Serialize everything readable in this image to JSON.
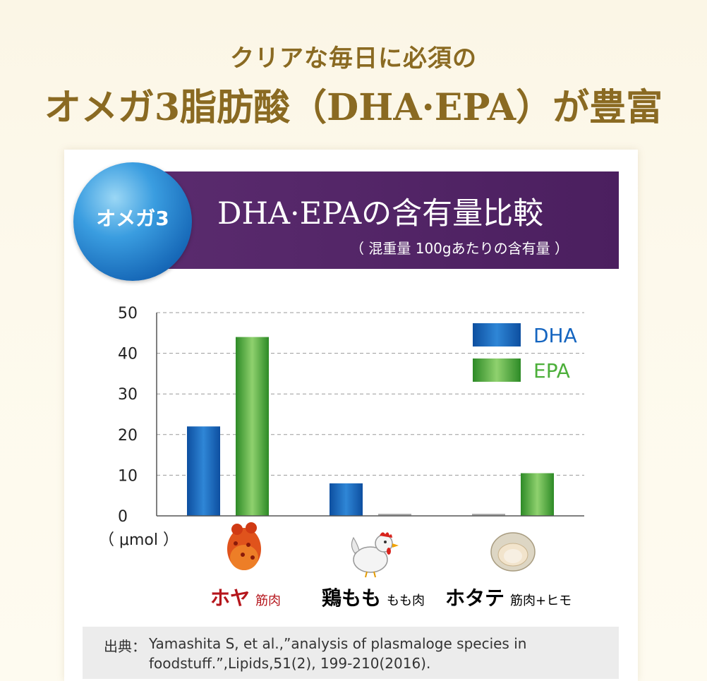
{
  "headline": {
    "sub": "クリアな毎日に必須の",
    "main": "オメガ3脂肪酸（DHA·EPA）が豊富"
  },
  "badge": {
    "label": "オメガ3"
  },
  "banner": {
    "title": "DHA·EPAの含有量比較",
    "subtitle": "（ 混重量 100gあたりの含有量 ）"
  },
  "categories": [
    {
      "name": "ホヤ",
      "sub": "筋肉",
      "name_color": "#b5161c"
    },
    {
      "name": "鶏もも",
      "sub": "もも肉",
      "name_color": "#111111"
    },
    {
      "name": "ホタテ",
      "sub": "筋肉+ヒモ",
      "name_color": "#111111"
    }
  ],
  "chart_data": {
    "type": "bar",
    "categories": [
      "ホヤ 筋肉",
      "鶏もも もも肉",
      "ホタテ 筋肉+ヒモ"
    ],
    "series": [
      {
        "name": "DHA",
        "values": [
          22,
          8,
          0
        ],
        "color": "#1565c0"
      },
      {
        "name": "EPA",
        "values": [
          44,
          0,
          10.5
        ],
        "color": "#4caf3a"
      }
    ],
    "ylim": [
      0,
      50
    ],
    "yticks": [
      "0",
      "10",
      "20",
      "30",
      "40",
      "50"
    ],
    "unit_label": "（ μmol ）",
    "grid": true,
    "legend_position": "top-right"
  },
  "source": {
    "label": "出典：",
    "line1": "Yamashita S, et al.,”analysis of plasmaloge species in",
    "line2": "foodstuff.”,Lipids,51(2), 199-210(2016)."
  }
}
